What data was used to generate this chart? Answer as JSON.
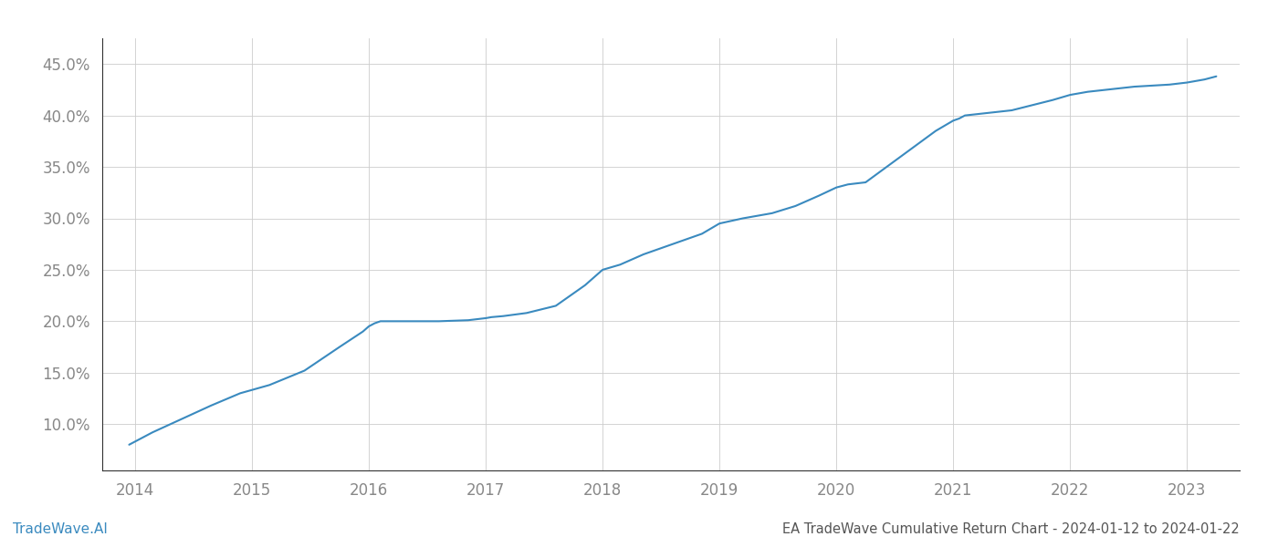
{
  "title": "EA TradeWave Cumulative Return Chart - 2024-01-12 to 2024-01-22",
  "watermark": "TradeWave.AI",
  "line_color": "#3a8abf",
  "background_color": "#ffffff",
  "grid_color": "#cccccc",
  "x_years": [
    2014,
    2015,
    2016,
    2017,
    2018,
    2019,
    2020,
    2021,
    2022,
    2023
  ],
  "x_data": [
    2013.95,
    2014.15,
    2014.4,
    2014.65,
    2014.9,
    2015.15,
    2015.45,
    2015.75,
    2015.95,
    2016.0,
    2016.05,
    2016.1,
    2016.3,
    2016.6,
    2016.85,
    2017.0,
    2017.05,
    2017.15,
    2017.35,
    2017.6,
    2017.85,
    2018.0,
    2018.15,
    2018.35,
    2018.6,
    2018.85,
    2019.0,
    2019.2,
    2019.45,
    2019.65,
    2019.85,
    2020.0,
    2020.1,
    2020.25,
    2020.55,
    2020.85,
    2021.0,
    2021.05,
    2021.1,
    2021.5,
    2021.85,
    2022.0,
    2022.15,
    2022.55,
    2022.85,
    2023.0,
    2023.15,
    2023.25
  ],
  "y_data": [
    8.0,
    9.2,
    10.5,
    11.8,
    13.0,
    13.8,
    15.2,
    17.5,
    19.0,
    19.5,
    19.8,
    20.0,
    20.0,
    20.0,
    20.1,
    20.3,
    20.4,
    20.5,
    20.8,
    21.5,
    23.5,
    25.0,
    25.5,
    26.5,
    27.5,
    28.5,
    29.5,
    30.0,
    30.5,
    31.2,
    32.2,
    33.0,
    33.3,
    33.5,
    36.0,
    38.5,
    39.5,
    39.7,
    40.0,
    40.5,
    41.5,
    42.0,
    42.3,
    42.8,
    43.0,
    43.2,
    43.5,
    43.8
  ],
  "ylim": [
    5.5,
    47.5
  ],
  "xlim": [
    2013.72,
    2023.45
  ],
  "yticks": [
    10.0,
    15.0,
    20.0,
    25.0,
    30.0,
    35.0,
    40.0,
    45.0
  ],
  "title_fontsize": 10.5,
  "tick_fontsize": 12,
  "watermark_fontsize": 11,
  "line_width": 1.5,
  "title_color": "#555555",
  "tick_color": "#888888",
  "watermark_color": "#3a8abf",
  "left_spine_color": "#333333",
  "bottom_spine_color": "#333333"
}
